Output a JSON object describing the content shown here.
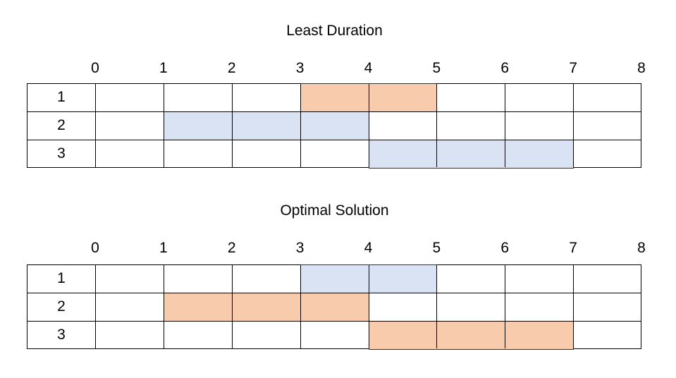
{
  "colors": {
    "orange": "#f8cbad",
    "blue": "#dae3f3",
    "grid": "#000000"
  },
  "panels": [
    {
      "title": "Least Duration",
      "ticks": [
        "0",
        "1",
        "2",
        "3",
        "4",
        "5",
        "6",
        "7",
        "8"
      ],
      "rows": [
        "1",
        "2",
        "3"
      ],
      "bars": [
        {
          "row": 1,
          "start": 3,
          "end": 5,
          "color": "orange"
        },
        {
          "row": 2,
          "start": 1,
          "end": 4,
          "color": "blue"
        },
        {
          "row": 3,
          "start": 4,
          "end": 7,
          "color": "blue"
        }
      ]
    },
    {
      "title": "Optimal Solution",
      "ticks": [
        "0",
        "1",
        "2",
        "3",
        "4",
        "5",
        "6",
        "7",
        "8"
      ],
      "rows": [
        "1",
        "2",
        "3"
      ],
      "bars": [
        {
          "row": 1,
          "start": 3,
          "end": 5,
          "color": "blue"
        },
        {
          "row": 2,
          "start": 1,
          "end": 4,
          "color": "orange"
        },
        {
          "row": 3,
          "start": 4,
          "end": 7,
          "color": "orange"
        }
      ]
    }
  ]
}
